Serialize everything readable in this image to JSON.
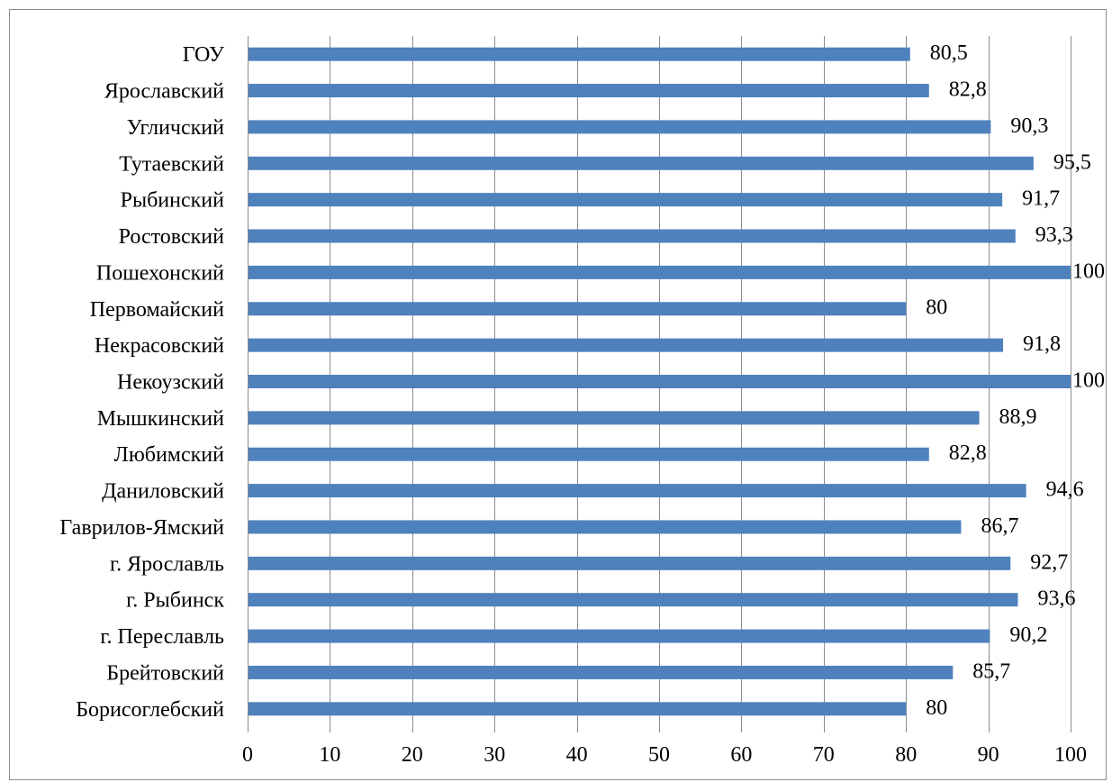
{
  "chart_data": {
    "type": "bar",
    "orientation": "horizontal",
    "title": "",
    "xlabel": "",
    "ylabel": "",
    "xlim": [
      0,
      100
    ],
    "xticks": [
      0,
      10,
      20,
      30,
      40,
      50,
      60,
      70,
      80,
      90,
      100
    ],
    "grid": "vertical",
    "legend": "none",
    "bar_color": "#4f81bd",
    "categories": [
      "ГОУ",
      "Ярославский",
      "Угличский",
      "Тутаевский",
      "Рыбинский",
      "Ростовский",
      "Пошехонский",
      "Первомайский",
      "Некрасовский",
      "Некоузский",
      "Мышкинский",
      "Любимский",
      "Даниловский",
      "Гаврилов-Ямский",
      "г. Ярославль",
      "г. Рыбинск",
      "г. Переславль",
      "Брейтовский",
      "Борисоглебский"
    ],
    "values": [
      80.5,
      82.8,
      90.3,
      95.5,
      91.7,
      93.3,
      100,
      80,
      91.8,
      100,
      88.9,
      82.8,
      94.6,
      86.7,
      92.7,
      93.6,
      90.2,
      85.7,
      80
    ],
    "data_labels": [
      "80,5",
      "82,8",
      "90,3",
      "95,5",
      "91,7",
      "93,3",
      "100",
      "80",
      "91,8",
      "100",
      "88,9",
      "82,8",
      "94,6",
      "86,7",
      "92,7",
      "93,6",
      "90,2",
      "85,7",
      "80"
    ]
  }
}
